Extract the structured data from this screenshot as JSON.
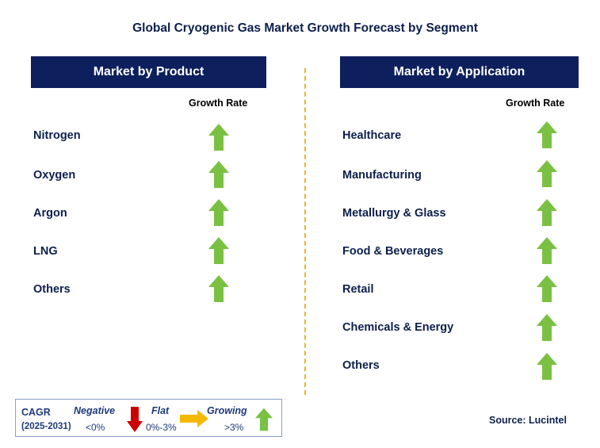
{
  "title": "Global Cryogenic Gas Market Growth Forecast by Segment",
  "product": {
    "header": "Market by Product",
    "growth_label": "Growth Rate",
    "items": [
      {
        "label": "Nitrogen",
        "trend": "growing"
      },
      {
        "label": "Oxygen",
        "trend": "growing"
      },
      {
        "label": "Argon",
        "trend": "growing"
      },
      {
        "label": "LNG",
        "trend": "growing"
      },
      {
        "label": "Others",
        "trend": "growing"
      }
    ]
  },
  "application": {
    "header": "Market by Application",
    "growth_label": "Growth Rate",
    "items": [
      {
        "label": "Healthcare",
        "trend": "growing"
      },
      {
        "label": "Manufacturing",
        "trend": "growing"
      },
      {
        "label": "Metallurgy & Glass",
        "trend": "growing"
      },
      {
        "label": "Food & Beverages",
        "trend": "growing"
      },
      {
        "label": "Retail",
        "trend": "growing"
      },
      {
        "label": "Chemicals & Energy",
        "trend": "growing"
      },
      {
        "label": "Others",
        "trend": "growing"
      }
    ]
  },
  "legend": {
    "cagr": "CAGR",
    "period": "(2025-2031)",
    "negative_label": "Negative",
    "negative_value": "<0%",
    "flat_label": "Flat",
    "flat_value": "0%-3%",
    "growing_label": "Growing",
    "growing_value": ">3%"
  },
  "source": "Source: Lucintel",
  "colors": {
    "header_bg": "#0d1f5c",
    "up_arrow": "#7ac143",
    "down_arrow": "#cc0000",
    "flat_arrow": "#f5b800",
    "divider": "#f0b323"
  },
  "icons": {
    "up": "up-arrow-icon",
    "down": "down-arrow-icon",
    "flat": "right-arrow-icon"
  }
}
